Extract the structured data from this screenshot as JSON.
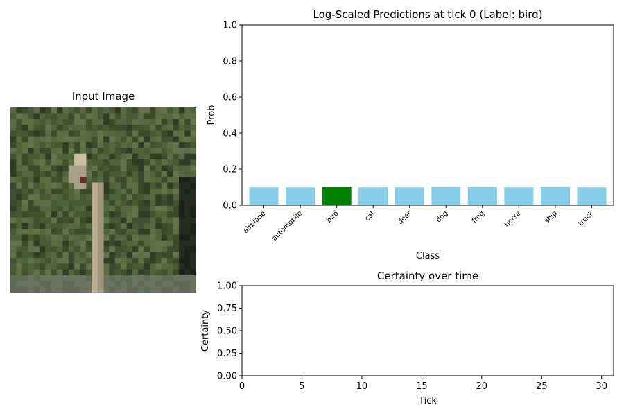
{
  "input_panel": {
    "title": "Input Image"
  },
  "chart_data": [
    {
      "type": "bar",
      "title": "Log-Scaled Predictions at tick 0 (Label: bird)",
      "xlabel": "Class",
      "ylabel": "Prob",
      "ylim": [
        0,
        1
      ],
      "yticks": [
        "0.0",
        "0.2",
        "0.4",
        "0.6",
        "0.8",
        "1.0"
      ],
      "categories": [
        "airplane",
        "automobile",
        "bird",
        "cat",
        "deer",
        "dog",
        "frog",
        "horse",
        "ship",
        "truck"
      ],
      "values": [
        0.099,
        0.099,
        0.103,
        0.099,
        0.099,
        0.103,
        0.103,
        0.099,
        0.103,
        0.099
      ],
      "highlight_index": 2,
      "colors": {
        "default": "#87ceeb",
        "highlight": "#008000"
      },
      "grid": false
    },
    {
      "type": "line",
      "title": "Certainty over time",
      "xlabel": "Tick",
      "ylabel": "Certainty",
      "xlim": [
        0,
        31
      ],
      "ylim": [
        0,
        1
      ],
      "xticks": [
        "0",
        "5",
        "10",
        "15",
        "20",
        "25",
        "30"
      ],
      "yticks": [
        "0.00",
        "0.25",
        "0.50",
        "0.75",
        "1.00"
      ],
      "series": [],
      "grid": false
    }
  ]
}
